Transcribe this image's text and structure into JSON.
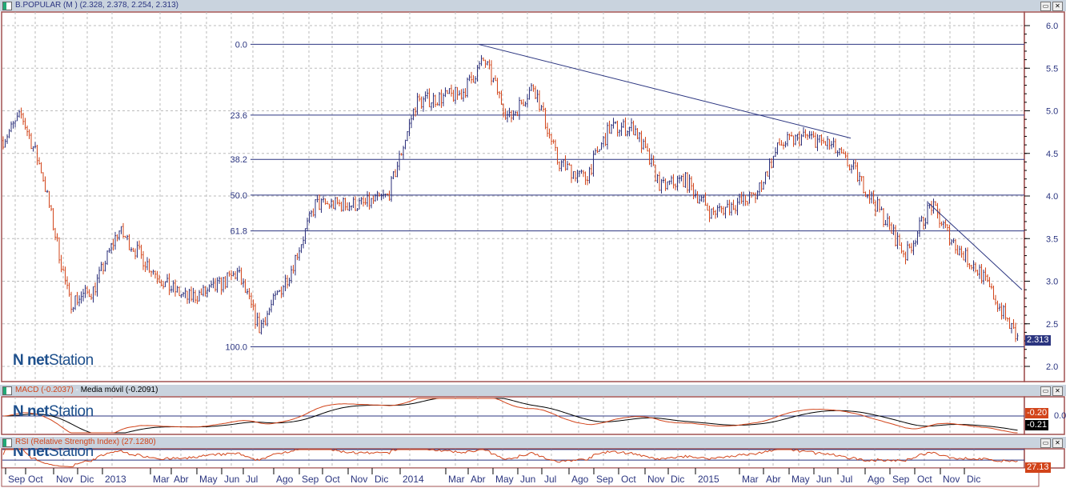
{
  "header": {
    "symbol": "B.POPULAR (M )",
    "ohlc": "(2.328, 2.378, 2.254, 2.313)"
  },
  "macd_header": {
    "macd": "MACD (-0.2037)",
    "separator": "-",
    "signal": "Media móvil (-0.2091)",
    "macd_tag": "-0.20",
    "signal_tag": "-0.21",
    "zero_label": "0.0"
  },
  "rsi_header": {
    "label": "RSI (Relative Strength Index) (27.1280)",
    "tag": "27.13"
  },
  "logo": {
    "brand": "net",
    "name": "Station"
  },
  "price_tag": "2.313",
  "colors": {
    "up": "#2b2f7a",
    "down": "#d2441a",
    "fib": "#2b3580",
    "frame": "#a05050",
    "macd": "#d2441a",
    "signal": "#000000"
  },
  "chart_data": {
    "type": "candlestick",
    "y_axis": {
      "ticks": [
        "2.0",
        "2.5",
        "3.0",
        "3.5",
        "4.0",
        "4.5",
        "5.0",
        "5.5",
        "6.0"
      ],
      "ylim": [
        1.95,
        6.1
      ]
    },
    "x_labels": [
      "Sep",
      "Oct",
      "Nov",
      "Dic",
      "2013",
      "Mar",
      "Abr",
      "May",
      "Jun",
      "Jul",
      "Ago",
      "Sep",
      "Oct",
      "Nov",
      "Dic",
      "2014",
      "Mar",
      "Abr",
      "May",
      "Jun",
      "Jul",
      "Ago",
      "Sep",
      "Oct",
      "Nov",
      "Dic",
      "2015",
      "Mar",
      "Abr",
      "May",
      "Jun",
      "Jul",
      "Ago",
      "Sep",
      "Oct",
      "Nov",
      "Dic"
    ],
    "approx_close": [
      4.95,
      4.3,
      2.75,
      2.9,
      3.6,
      2.95,
      2.8,
      2.9,
      3.1,
      2.45,
      3.1,
      3.9,
      3.9,
      3.9,
      4.0,
      5.1,
      5.2,
      5.6,
      4.9,
      5.3,
      4.4,
      4.2,
      4.8,
      4.8,
      4.1,
      4.2,
      3.8,
      4.0,
      4.6,
      4.7,
      4.6,
      4.3,
      3.8,
      3.3,
      3.9,
      3.4,
      3.1
    ],
    "last_close": 2.313,
    "fibonacci": [
      {
        "level": "0.0",
        "price": 5.78
      },
      {
        "level": "23.6",
        "price": 4.95
      },
      {
        "level": "38.2",
        "price": 4.43
      },
      {
        "level": "50.0",
        "price": 4.01
      },
      {
        "level": "61.8",
        "price": 3.59
      },
      {
        "level": "100.0",
        "price": 2.23
      }
    ],
    "trendlines": [
      {
        "from": [
          "Abr 2014",
          5.78
        ],
        "to": [
          "Jul 2015",
          4.68
        ]
      },
      {
        "from": [
          "Oct 2015",
          3.92
        ],
        "to": [
          "Dic 2015",
          2.9
        ]
      }
    ],
    "rsi_levels": [
      70,
      30
    ]
  }
}
